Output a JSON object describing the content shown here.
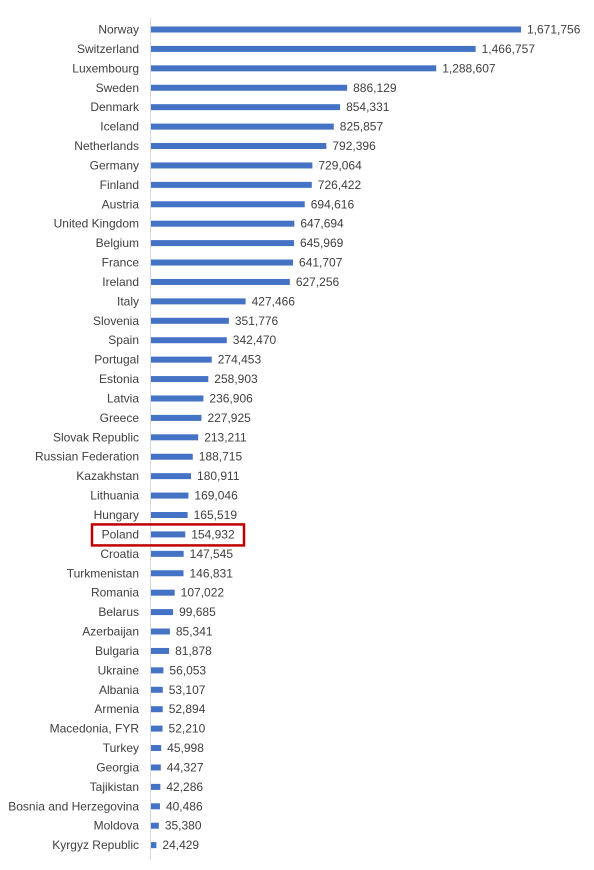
{
  "chart_data": {
    "type": "bar",
    "orientation": "horizontal",
    "title": "",
    "xlabel": "",
    "ylabel": "",
    "categories": [
      "Norway",
      "Switzerland",
      "Luxembourg",
      "Sweden",
      "Denmark",
      "Iceland",
      "Netherlands",
      "Germany",
      "Finland",
      "Austria",
      "United Kingdom",
      "Belgium",
      "France",
      "Ireland",
      "Italy",
      "Slovenia",
      "Spain",
      "Portugal",
      "Estonia",
      "Latvia",
      "Greece",
      "Slovak Republic",
      "Russian Federation",
      "Kazakhstan",
      "Lithuania",
      "Hungary",
      "Poland",
      "Croatia",
      "Turkmenistan",
      "Romania",
      "Belarus",
      "Azerbaijan",
      "Bulgaria",
      "Ukraine",
      "Albania",
      "Armenia",
      "Macedonia, FYR",
      "Turkey",
      "Georgia",
      "Tajikistan",
      "Bosnia and Herzegovina",
      "Moldova",
      "Kyrgyz Republic"
    ],
    "values": [
      1671756,
      1466757,
      1288607,
      886129,
      854331,
      825857,
      792396,
      729064,
      726422,
      694616,
      647694,
      645969,
      641707,
      627256,
      427466,
      351776,
      342470,
      274453,
      258903,
      236906,
      227925,
      213211,
      188715,
      180911,
      169046,
      165519,
      154932,
      147545,
      146831,
      107022,
      99685,
      85341,
      81878,
      56053,
      53107,
      52894,
      52210,
      45998,
      44327,
      42286,
      40486,
      35380,
      24429
    ],
    "value_labels": [
      "1,671,756",
      "1,466,757",
      "1,288,607",
      "886,129",
      "854,331",
      "825,857",
      "792,396",
      "729,064",
      "726,422",
      "694,616",
      "647,694",
      "645,969",
      "641,707",
      "627,256",
      "427,466",
      "351,776",
      "342,470",
      "274,453",
      "258,903",
      "236,906",
      "227,925",
      "213,211",
      "188,715",
      "180,911",
      "169,046",
      "165,519",
      "154,932",
      "147,545",
      "146,831",
      "107,022",
      "99,685",
      "85,341",
      "81,878",
      "56,053",
      "53,107",
      "52,894",
      "52,210",
      "45,998",
      "44,327",
      "42,286",
      "40,486",
      "35,380",
      "24,429"
    ],
    "highlighted": "Poland",
    "bar_color": "#4472c4",
    "highlight_color": "#c00000",
    "grid": false,
    "legend": "none"
  }
}
